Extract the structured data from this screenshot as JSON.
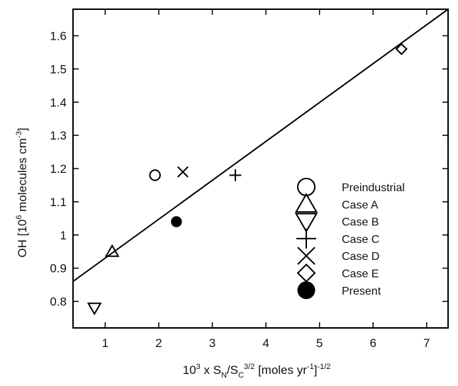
{
  "chart_data": {
    "type": "scatter",
    "title": "",
    "xlabel": "10^3 x S_N/S_C^3/2 [moles yr^-1]^-1/2",
    "ylabel": "OH [10^6 molecules cm^-3]",
    "xlim": [
      0.4,
      7.4
    ],
    "ylim": [
      0.72,
      1.68
    ],
    "xticks": [
      1,
      2,
      3,
      4,
      5,
      6,
      7
    ],
    "yticks": [
      0.8,
      0.9,
      1.0,
      1.1,
      1.2,
      1.3,
      1.4,
      1.5,
      1.6
    ],
    "ytick_labels": [
      "0.8",
      "0.9",
      "1",
      "1.1",
      "1.2",
      "1.3",
      "1.4",
      "1.5",
      "1.6"
    ],
    "legend_position": "center-right",
    "series": [
      {
        "name": "Preindustrial",
        "marker": "circle-open",
        "points": [
          [
            1.93,
            1.18
          ]
        ]
      },
      {
        "name": "Case A",
        "marker": "triangle-up",
        "points": [
          [
            1.13,
            0.95
          ]
        ]
      },
      {
        "name": "Case B",
        "marker": "triangle-down",
        "points": [
          [
            0.8,
            0.78
          ]
        ]
      },
      {
        "name": "Case C",
        "marker": "plus",
        "points": [
          [
            3.43,
            1.18
          ]
        ]
      },
      {
        "name": "Case D",
        "marker": "x",
        "points": [
          [
            2.45,
            1.19
          ]
        ]
      },
      {
        "name": "Case E",
        "marker": "diamond",
        "points": [
          [
            6.53,
            1.56
          ]
        ]
      },
      {
        "name": "Present",
        "marker": "circle-filled",
        "points": [
          [
            2.33,
            1.04
          ]
        ]
      }
    ],
    "fit_line": {
      "points": [
        [
          0.4,
          0.86
        ],
        [
          7.4,
          1.68
        ]
      ]
    }
  }
}
